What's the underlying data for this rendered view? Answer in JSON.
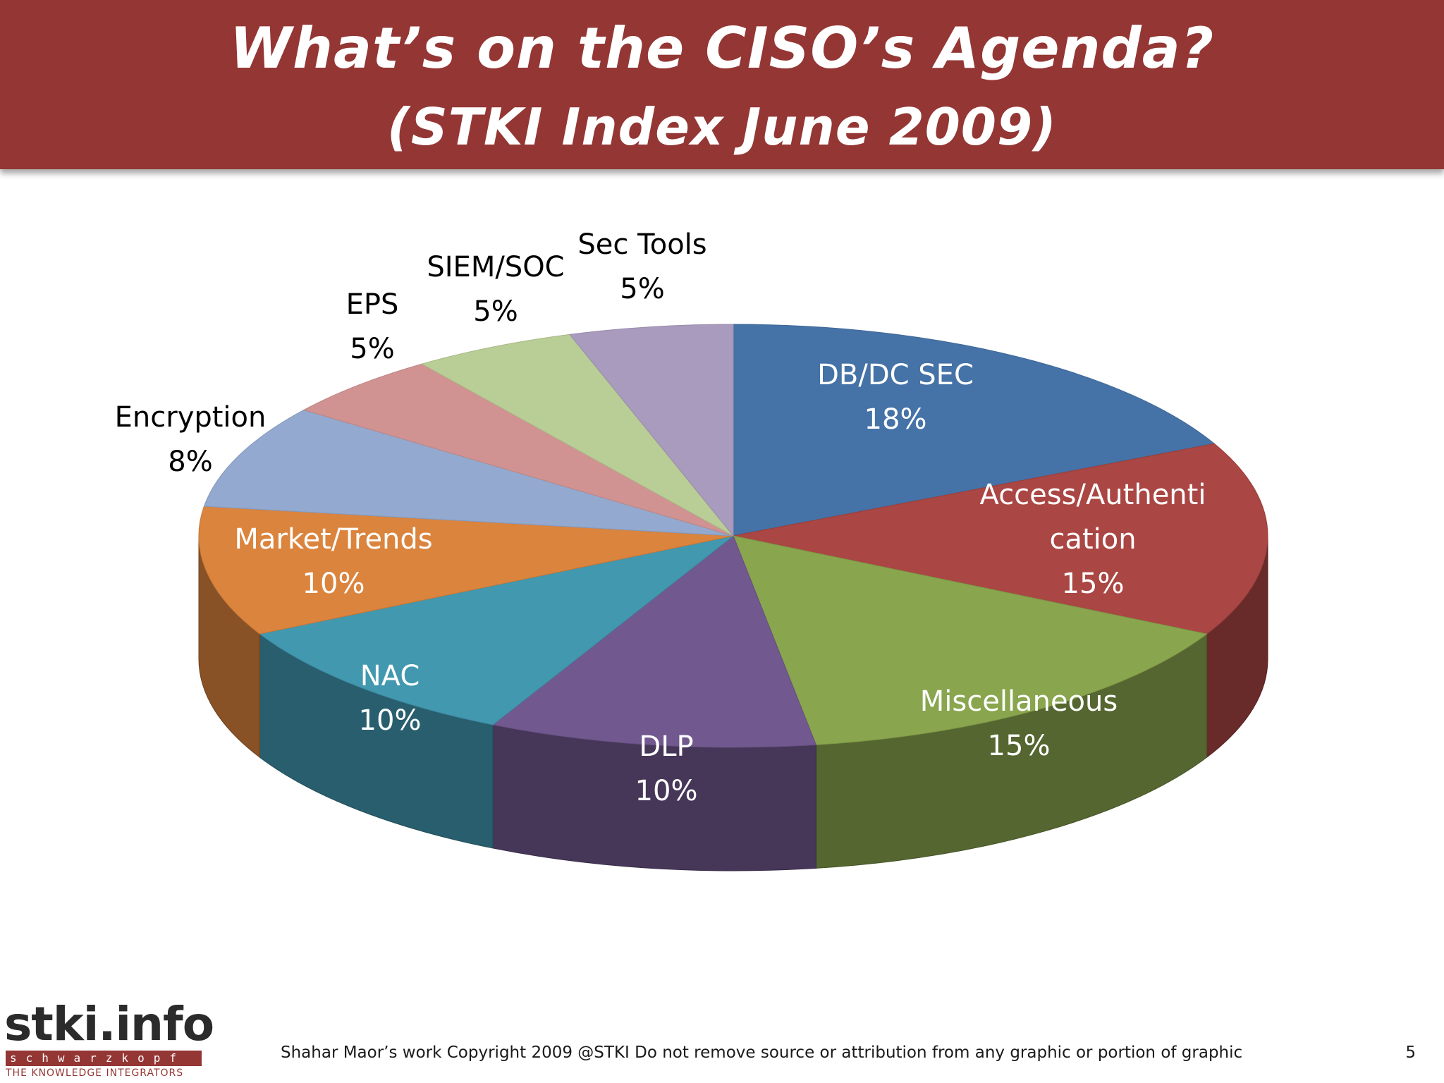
{
  "slide": {
    "title_line1": "What’s on the CISO’s Agenda?",
    "title_line2": "(STKI Index June 2009)",
    "footer": "Shahar Maor’s work  Copyright 2009 @STKI    Do not remove source or attribution from any graphic or portion of graphic",
    "page_number": "5",
    "logo": {
      "main": "stki.info",
      "strip": "schwarzkopf",
      "tagline": "THE KNOWLEDGE INTEGRATORS"
    }
  },
  "chart_data": {
    "type": "pie",
    "style": "3d",
    "legend": "none",
    "slices": [
      {
        "label_lines": [
          "DB/DC SEC"
        ],
        "value": 18,
        "value_label": "18%",
        "color": "#4572A7",
        "label_color": "#ffffff"
      },
      {
        "label_lines": [
          "Access/Authenti",
          "cation"
        ],
        "value": 15,
        "value_label": "15%",
        "color": "#AA4643",
        "label_color": "#ffffff"
      },
      {
        "label_lines": [
          "Miscellaneous"
        ],
        "value": 15,
        "value_label": "15%",
        "color": "#89A54E",
        "label_color": "#ffffff"
      },
      {
        "label_lines": [
          "DLP"
        ],
        "value": 10,
        "value_label": "10%",
        "color": "#71588F",
        "label_color": "#ffffff"
      },
      {
        "label_lines": [
          "NAC"
        ],
        "value": 10,
        "value_label": "10%",
        "color": "#4198AF",
        "label_color": "#ffffff"
      },
      {
        "label_lines": [
          "Market/Trends"
        ],
        "value": 10,
        "value_label": "10%",
        "color": "#DB843D",
        "label_color": "#ffffff"
      },
      {
        "label_lines": [
          "Encryption"
        ],
        "value": 8,
        "value_label": "8%",
        "color": "#93A9CF",
        "label_color": "#000000"
      },
      {
        "label_lines": [
          "EPS"
        ],
        "value": 5,
        "value_label": "5%",
        "color": "#D19392",
        "label_color": "#000000"
      },
      {
        "label_lines": [
          "SIEM/SOC"
        ],
        "value": 5,
        "value_label": "5%",
        "color": "#B9CD96",
        "label_color": "#000000"
      },
      {
        "label_lines": [
          "Sec Tools"
        ],
        "value": 5,
        "value_label": "5%",
        "color": "#A99BBD",
        "label_color": "#000000"
      }
    ]
  }
}
